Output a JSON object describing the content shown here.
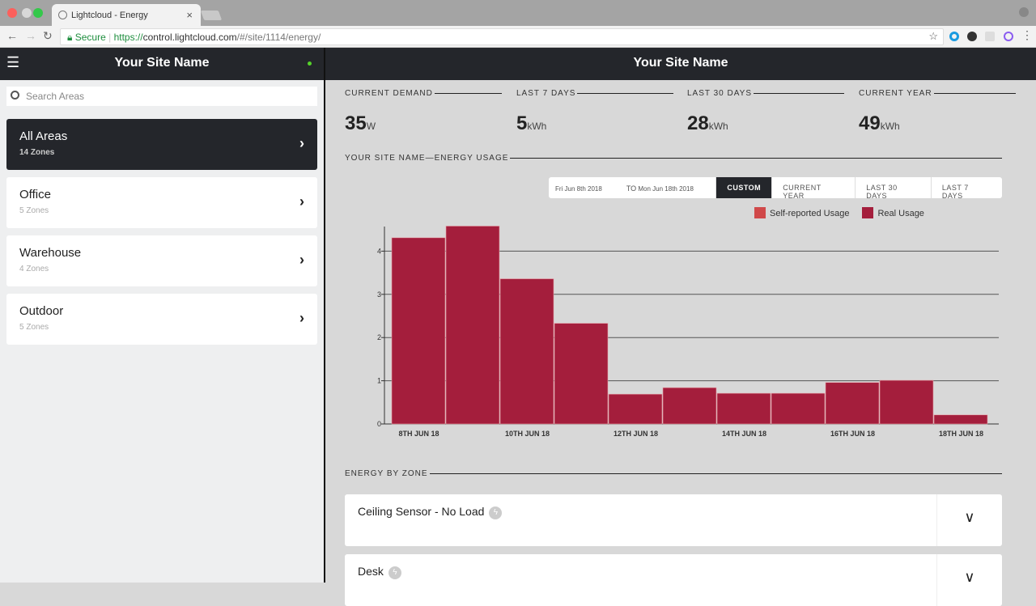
{
  "browser": {
    "tab_title": "Lightcloud - Energy",
    "secure_label": "Secure",
    "url_scheme": "https://",
    "url_host": "control.lightcloud.com",
    "url_path": "/#/site/1114/energy/"
  },
  "sidebar": {
    "title": "Your Site Name",
    "status_color": "#55d22a",
    "search_placeholder": "Search Areas",
    "areas": [
      {
        "name": "All Areas",
        "zones": "14 Zones",
        "selected": true
      },
      {
        "name": "Office",
        "zones": "5 Zones"
      },
      {
        "name": "Warehouse",
        "zones": "4 Zones"
      },
      {
        "name": "Outdoor",
        "zones": "5 Zones"
      }
    ]
  },
  "main": {
    "title": "Your Site Name",
    "stats": [
      {
        "label": "CURRENT DEMAND",
        "value": "35",
        "unit": "W"
      },
      {
        "label": "LAST 7 DAYS",
        "value": "5",
        "unit": "kWh"
      },
      {
        "label": "LAST 30 DAYS",
        "value": "28",
        "unit": "kWh"
      },
      {
        "label": "CURRENT YEAR",
        "value": "49",
        "unit": "kWh"
      }
    ],
    "usage_section": "YOUR SITE NAME—ENERGY USAGE",
    "date_from": "Fri Jun 8th 2018",
    "to_label": "TO",
    "date_to": "Mon Jun 18th 2018",
    "range_buttons": [
      "CUSTOM",
      "CURRENT YEAR",
      "LAST 30 DAYS",
      "LAST 7 DAYS"
    ],
    "active_range": "CUSTOM",
    "zone_section": "ENERGY BY ZONE",
    "zones": [
      {
        "name": "Ceiling Sensor - No Load"
      },
      {
        "name": "Desk"
      }
    ]
  },
  "chart_data": {
    "type": "bar",
    "title": "",
    "xlabel": "",
    "ylabel": "",
    "ylim": [
      0,
      4.6
    ],
    "yticks": [
      "0",
      "1",
      "2",
      "3",
      "4"
    ],
    "categories": [
      "8th Jun 18",
      "9th Jun 18",
      "10th Jun 18",
      "11th Jun 18",
      "12th Jun 18",
      "13th Jun 18",
      "14th Jun 18",
      "15th Jun 18",
      "16th Jun 18",
      "17th Jun 18",
      "18th Jun 18"
    ],
    "xtick_labels": [
      "8TH JUN 18",
      "10TH JUN 18",
      "12TH JUN 18",
      "14TH JUN 18",
      "16TH JUN 18",
      "18TH JUN 18"
    ],
    "legend": [
      {
        "name": "Self-reported Usage",
        "color": "#d0494a"
      },
      {
        "name": "Real Usage",
        "color": "#a41e3c"
      }
    ],
    "series": [
      {
        "name": "Real Usage",
        "values": [
          4.31,
          4.58,
          3.36,
          2.33,
          0.69,
          0.84,
          0.71,
          0.71,
          0.96,
          1.01,
          0.21
        ]
      }
    ],
    "grid": true,
    "legend_position": "top-right"
  }
}
